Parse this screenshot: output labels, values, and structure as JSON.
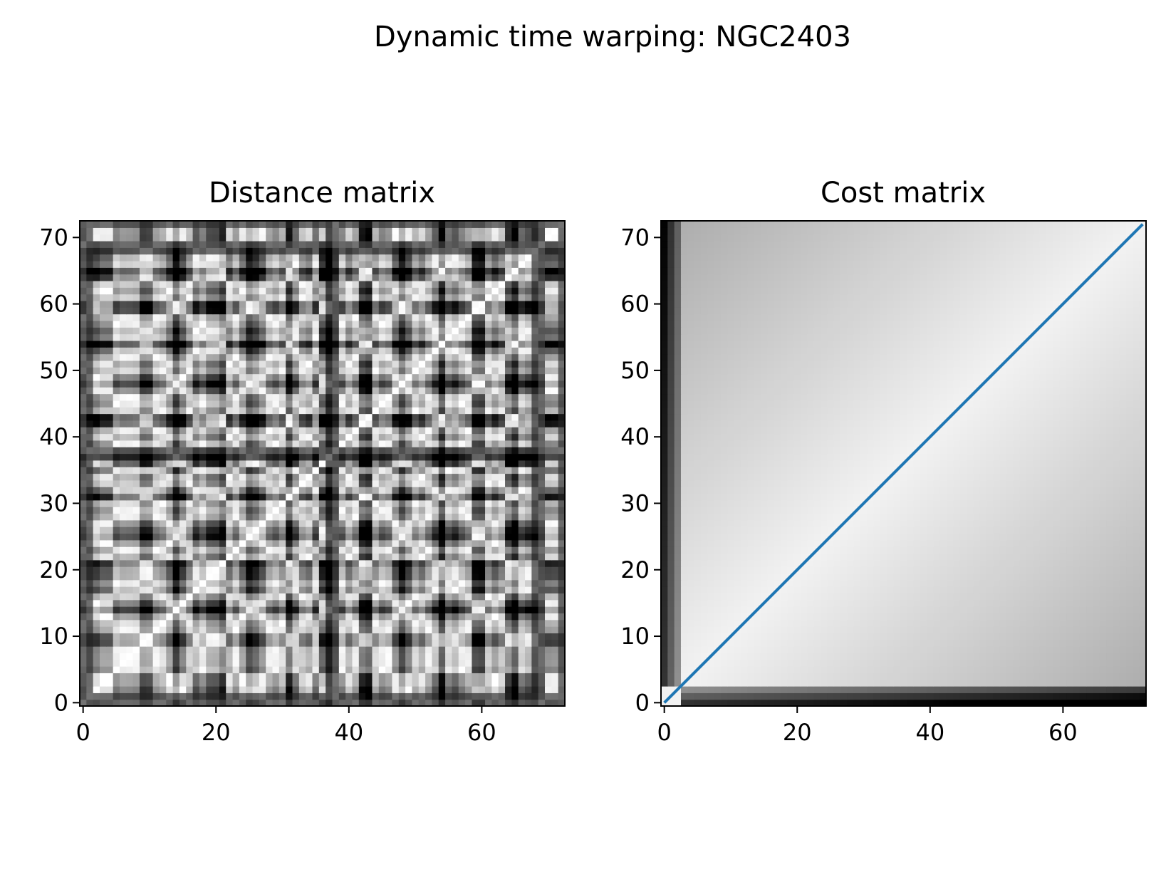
{
  "figure": {
    "suptitle": "Dynamic time warping: NGC2403"
  },
  "chart_data": [
    {
      "type": "heatmap",
      "title": "Distance matrix",
      "xlabel": "",
      "ylabel": "",
      "xlim": [
        -0.5,
        72.5
      ],
      "ylim": [
        -0.5,
        72.5
      ],
      "size": 73,
      "colormap": "gray_r",
      "xticks": [
        0,
        20,
        40,
        60
      ],
      "yticks": [
        0,
        10,
        20,
        30,
        40,
        50,
        60,
        70
      ],
      "tick_labels_x": [
        "0",
        "20",
        "40",
        "60"
      ],
      "tick_labels_y": [
        "0",
        "10",
        "20",
        "30",
        "40",
        "50",
        "60",
        "70"
      ],
      "dark_rows": [
        0,
        1,
        37,
        38,
        68,
        69,
        72
      ],
      "dark_cols": [
        0,
        1,
        37,
        38,
        68,
        69,
        72
      ],
      "grid": false
    },
    {
      "type": "heatmap",
      "title": "Cost matrix",
      "xlabel": "",
      "ylabel": "",
      "xlim": [
        -0.5,
        72.5
      ],
      "ylim": [
        -0.5,
        72.5
      ],
      "size": 73,
      "colormap": "gray_r",
      "xticks": [
        0,
        20,
        40,
        60
      ],
      "yticks": [
        0,
        10,
        20,
        30,
        40,
        50,
        60,
        70
      ],
      "tick_labels_x": [
        "0",
        "20",
        "40",
        "60"
      ],
      "tick_labels_y": [
        "0",
        "10",
        "20",
        "30",
        "40",
        "50",
        "60",
        "70"
      ],
      "warping_path": {
        "x": [
          0,
          72
        ],
        "y": [
          0,
          72
        ],
        "color": "#1f77b4"
      },
      "grid": false
    }
  ]
}
